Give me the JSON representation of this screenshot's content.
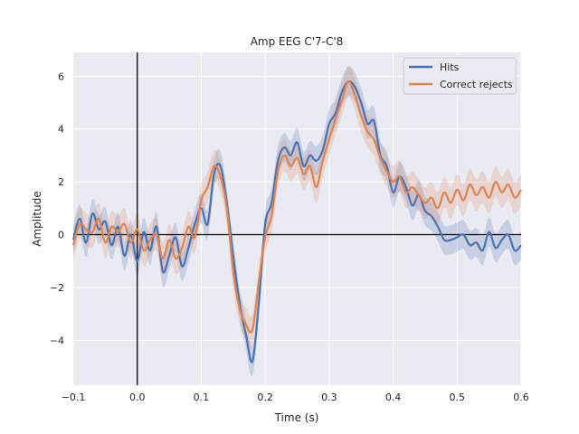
{
  "chart_data": {
    "type": "line",
    "title": "Amp EEG C'7-C'8",
    "xlabel": "Time (s)",
    "ylabel": "Amplitude",
    "xlim": [
      -0.1,
      0.6
    ],
    "ylim": [
      -5.7,
      6.9
    ],
    "x_ticks": [
      -0.1,
      0.0,
      0.1,
      0.2,
      0.3,
      0.4,
      0.5,
      0.6
    ],
    "x_tick_labels": [
      "−0.1",
      "0.0",
      "0.1",
      "0.2",
      "0.3",
      "0.4",
      "0.5",
      "0.6"
    ],
    "y_ticks": [
      -4,
      -2,
      0,
      2,
      4,
      6
    ],
    "y_tick_labels": [
      "−4",
      "−2",
      "0",
      "2",
      "4",
      "6"
    ],
    "grid": true,
    "legend_position": "top-right",
    "reference_lines": {
      "vertical_x": 0.0,
      "horizontal_y": 0.0
    },
    "series": [
      {
        "name": "Hits",
        "color": "#4c72b0",
        "ci_halfwidth": 0.55,
        "x": [
          -0.1,
          -0.09,
          -0.08,
          -0.07,
          -0.06,
          -0.05,
          -0.04,
          -0.03,
          -0.02,
          -0.01,
          0.0,
          0.01,
          0.02,
          0.03,
          0.04,
          0.05,
          0.06,
          0.07,
          0.08,
          0.09,
          0.1,
          0.11,
          0.12,
          0.13,
          0.14,
          0.15,
          0.16,
          0.17,
          0.18,
          0.19,
          0.2,
          0.21,
          0.22,
          0.23,
          0.24,
          0.25,
          0.26,
          0.27,
          0.28,
          0.29,
          0.3,
          0.31,
          0.32,
          0.33,
          0.34,
          0.35,
          0.36,
          0.37,
          0.38,
          0.39,
          0.4,
          0.41,
          0.42,
          0.43,
          0.44,
          0.45,
          0.46,
          0.47,
          0.48,
          0.49,
          0.5,
          0.51,
          0.52,
          0.53,
          0.54,
          0.55,
          0.56,
          0.57,
          0.58,
          0.59,
          0.6
        ],
        "values": [
          -0.2,
          0.6,
          -0.3,
          0.8,
          0.2,
          0.5,
          -0.4,
          0.3,
          -0.8,
          0.0,
          -1.0,
          0.1,
          -0.6,
          0.3,
          -1.4,
          -0.8,
          -0.1,
          -1.2,
          -0.5,
          0.4,
          1.0,
          0.4,
          2.3,
          2.6,
          1.2,
          -0.8,
          -2.6,
          -3.8,
          -4.8,
          -2.6,
          0.4,
          1.2,
          2.8,
          3.3,
          3.0,
          3.5,
          2.6,
          3.0,
          2.8,
          3.2,
          4.2,
          4.6,
          5.4,
          5.8,
          5.6,
          5.0,
          4.2,
          4.3,
          3.0,
          2.6,
          1.6,
          2.2,
          1.8,
          1.1,
          1.5,
          0.9,
          0.7,
          0.3,
          -0.2,
          -0.2,
          -0.1,
          0.0,
          -0.4,
          -0.3,
          -0.6,
          0.1,
          -0.5,
          -0.2,
          0.0,
          -0.6,
          -0.4
        ]
      },
      {
        "name": "Correct rejects",
        "color": "#dd8452",
        "ci_halfwidth": 0.6,
        "x": [
          -0.1,
          -0.09,
          -0.08,
          -0.07,
          -0.06,
          -0.05,
          -0.04,
          -0.03,
          -0.02,
          -0.01,
          0.0,
          0.01,
          0.02,
          0.03,
          0.04,
          0.05,
          0.06,
          0.07,
          0.08,
          0.09,
          0.1,
          0.11,
          0.12,
          0.13,
          0.14,
          0.15,
          0.16,
          0.17,
          0.18,
          0.19,
          0.2,
          0.21,
          0.22,
          0.23,
          0.24,
          0.25,
          0.26,
          0.27,
          0.28,
          0.29,
          0.3,
          0.31,
          0.32,
          0.33,
          0.34,
          0.35,
          0.36,
          0.37,
          0.38,
          0.39,
          0.4,
          0.41,
          0.42,
          0.43,
          0.44,
          0.45,
          0.46,
          0.47,
          0.48,
          0.49,
          0.5,
          0.51,
          0.52,
          0.53,
          0.54,
          0.55,
          0.56,
          0.57,
          0.58,
          0.59,
          0.6
        ],
        "values": [
          -0.4,
          0.4,
          0.2,
          0.1,
          0.6,
          -0.3,
          0.3,
          0.1,
          0.4,
          -0.3,
          0.2,
          -0.6,
          -0.2,
          0.0,
          -0.9,
          -0.2,
          -0.9,
          -0.5,
          0.3,
          -0.1,
          1.3,
          1.8,
          2.6,
          2.2,
          1.0,
          -1.4,
          -2.8,
          -3.4,
          -3.6,
          -1.8,
          -0.1,
          0.7,
          2.4,
          3.0,
          2.6,
          2.9,
          2.3,
          2.6,
          1.8,
          2.8,
          3.6,
          4.4,
          5.1,
          5.8,
          5.3,
          4.5,
          3.9,
          3.6,
          2.9,
          2.4,
          2.0,
          2.2,
          1.6,
          1.8,
          1.5,
          1.2,
          1.4,
          1.0,
          1.6,
          1.2,
          1.7,
          1.3,
          1.9,
          1.5,
          1.8,
          1.4,
          2.0,
          1.6,
          1.9,
          1.4,
          1.7
        ]
      }
    ]
  }
}
